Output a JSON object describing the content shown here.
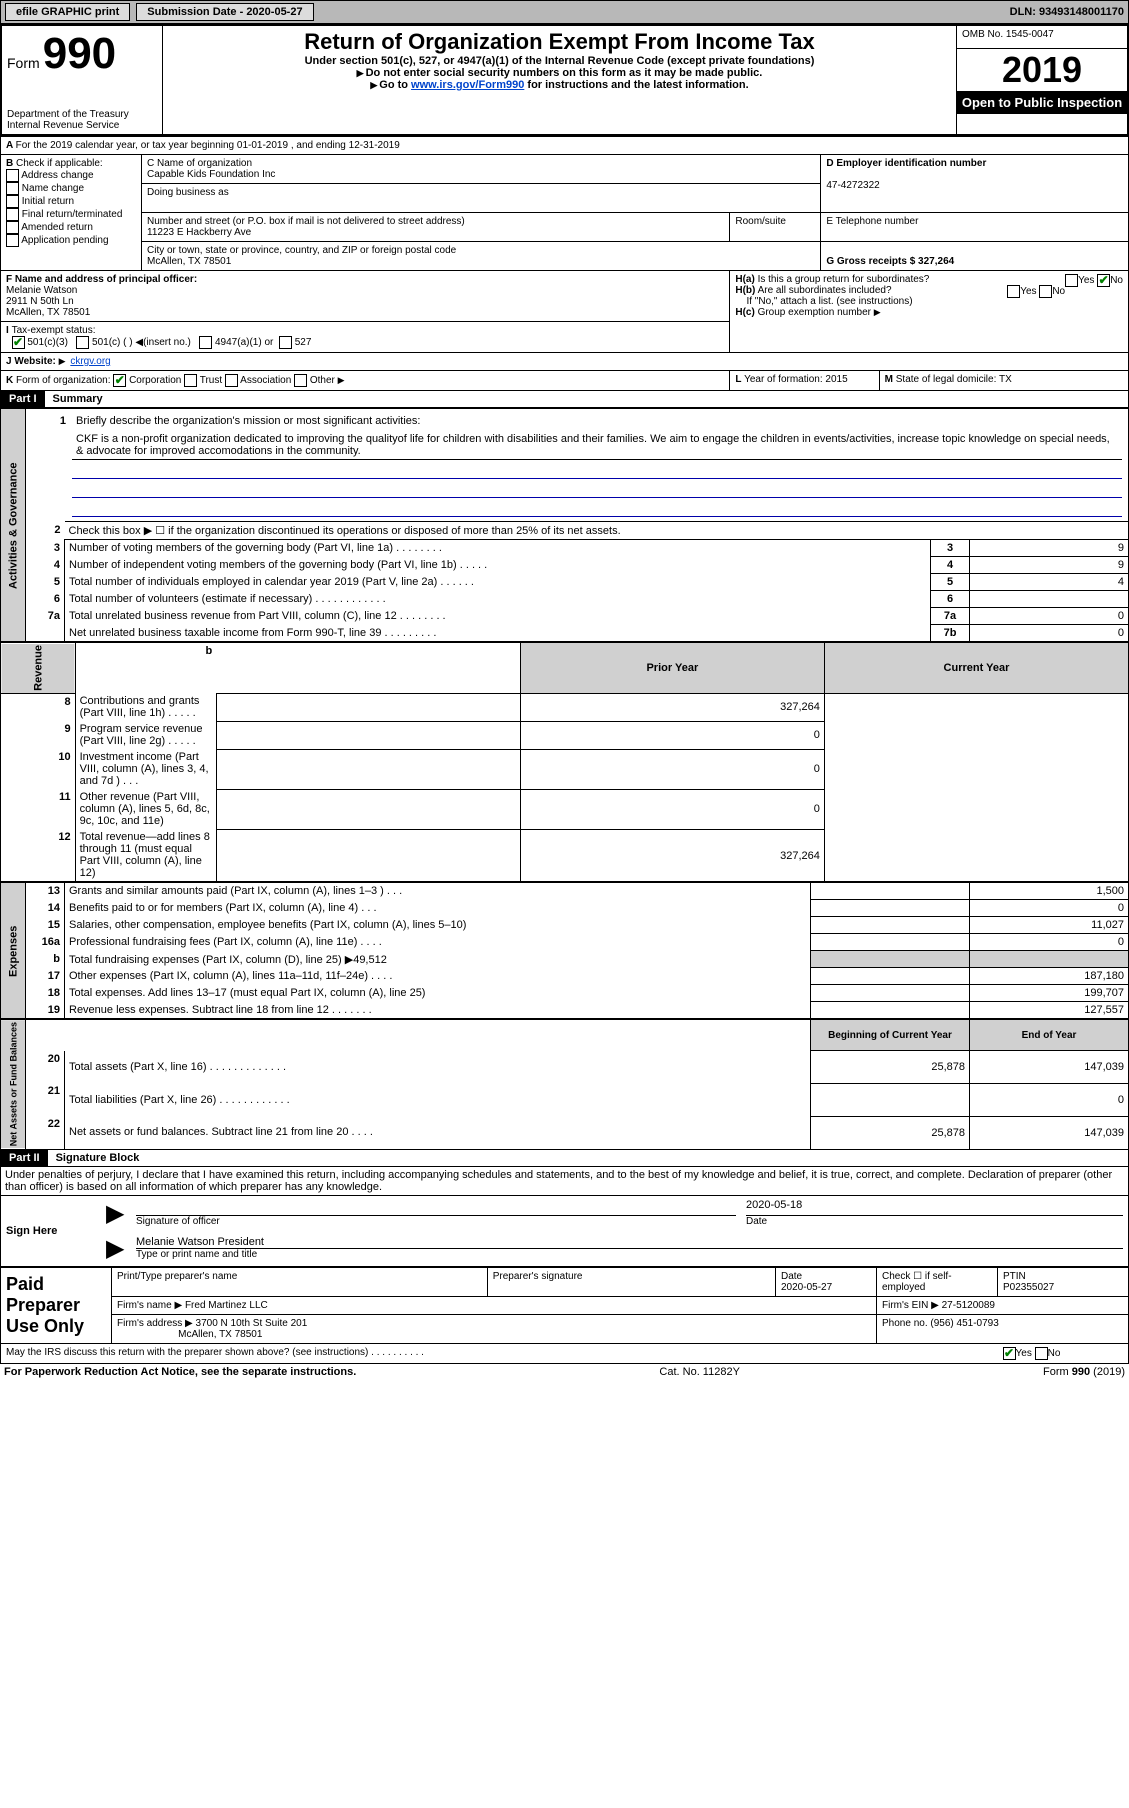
{
  "topbar": {
    "efile_label": "efile GRAPHIC print",
    "submission_date_label": "Submission Date - 2020-05-27",
    "dln_label": "DLN: 93493148001170"
  },
  "header": {
    "form_label": "Form",
    "form_number": "990",
    "dept": "Department of the Treasury\nInternal Revenue Service",
    "title": "Return of Organization Exempt From Income Tax",
    "sub1": "Under section 501(c), 527, or 4947(a)(1) of the Internal Revenue Code (except private foundations)",
    "sub2": "Do not enter social security numbers on this form as it may be made public.",
    "sub3_prefix": "Go to ",
    "sub3_link": "www.irs.gov/Form990",
    "sub3_suffix": " for instructions and the latest information.",
    "omb": "OMB No. 1545-0047",
    "year": "2019",
    "open_public": "Open to Public Inspection"
  },
  "A": {
    "line": "For the 2019 calendar year, or tax year beginning 01-01-2019   , and ending 12-31-2019"
  },
  "B": {
    "title": "Check if applicable:",
    "items": [
      "Address change",
      "Name change",
      "Initial return",
      "Final return/terminated",
      "Amended return",
      "Application pending"
    ]
  },
  "C": {
    "name_label": "C Name of organization",
    "name": "Capable Kids Foundation Inc",
    "dba_label": "Doing business as",
    "addr_label": "Number and street (or P.O. box if mail is not delivered to street address)",
    "room_label": "Room/suite",
    "addr": "11223 E Hackberry Ave",
    "city_label": "City or town, state or province, country, and ZIP or foreign postal code",
    "city": "McAllen, TX  78501"
  },
  "D": {
    "label": "D Employer identification number",
    "val": "47-4272322"
  },
  "E": {
    "label": "E Telephone number"
  },
  "G": {
    "label": "G Gross receipts $ 327,264"
  },
  "F": {
    "label": "F  Name and address of principal officer:",
    "name": "Melanie Watson",
    "addr1": "2911 N 50th Ln",
    "addr2": "McAllen, TX  78501"
  },
  "H": {
    "a_label": "Is this a group return for subordinates?",
    "b_label": "Are all subordinates included?",
    "b_note": "If \"No,\" attach a list. (see instructions)",
    "c_label": "Group exemption number"
  },
  "I": {
    "label": "Tax-exempt status:",
    "opt1": "501(c)(3)",
    "opt2": "501(c) (  )",
    "opt2_note": "(insert no.)",
    "opt3": "4947(a)(1) or",
    "opt4": "527"
  },
  "J": {
    "label": "Website:",
    "val": "ckrgv.org"
  },
  "K": {
    "label": "Form of organization:",
    "opts": [
      "Corporation",
      "Trust",
      "Association",
      "Other"
    ]
  },
  "L": {
    "label": "Year of formation: 2015"
  },
  "M": {
    "label": "State of legal domicile: TX"
  },
  "part1": {
    "header": "Part I",
    "title": "Summary"
  },
  "summary": {
    "q1": "Briefly describe the organization's mission or most significant activities:",
    "q1_text": "CKF is a non-profit organization dedicated to improving the qualityof life for children with disabilities and their families. We aim to engage the children in events/activities, increase topic knowledge on special needs, & advocate for improved accomodations in the community.",
    "q2": "Check this box ▶ ☐ if the organization discontinued its operations or disposed of more than 25% of its net assets.",
    "lines": [
      {
        "n": "3",
        "label": "Number of voting members of the governing body (Part VI, line 1a)  .   .   .   .   .   .   .   .",
        "box": "3",
        "val": "9"
      },
      {
        "n": "4",
        "label": "Number of independent voting members of the governing body (Part VI, line 1b)  .   .   .   .   .",
        "box": "4",
        "val": "9"
      },
      {
        "n": "5",
        "label": "Total number of individuals employed in calendar year 2019 (Part V, line 2a)  .   .   .   .   .   .",
        "box": "5",
        "val": "4"
      },
      {
        "n": "6",
        "label": "Total number of volunteers (estimate if necessary)   .   .   .   .   .   .   .   .   .   .   .   .",
        "box": "6",
        "val": ""
      },
      {
        "n": "7a",
        "label": "Total unrelated business revenue from Part VIII, column (C), line 12  .   .   .   .   .   .   .   .",
        "box": "7a",
        "val": "0"
      },
      {
        "n": "",
        "label": "Net unrelated business taxable income from Form 990-T, line 39   .   .   .   .   .   .   .   .   .",
        "box": "7b",
        "val": "0"
      }
    ]
  },
  "revenue": {
    "tab": "Revenue",
    "prior_label": "Prior Year",
    "current_label": "Current Year",
    "lines": [
      {
        "n": "8",
        "label": "Contributions and grants (Part VIII, line 1h)   .   .   .   .   .",
        "prior": "",
        "cur": "327,264"
      },
      {
        "n": "9",
        "label": "Program service revenue (Part VIII, line 2g)   .   .   .   .   .",
        "prior": "",
        "cur": "0"
      },
      {
        "n": "10",
        "label": "Investment income (Part VIII, column (A), lines 3, 4, and 7d )   .   .   .",
        "prior": "",
        "cur": "0"
      },
      {
        "n": "11",
        "label": "Other revenue (Part VIII, column (A), lines 5, 6d, 8c, 9c, 10c, and 11e)",
        "prior": "",
        "cur": "0"
      },
      {
        "n": "12",
        "label": "Total revenue—add lines 8 through 11 (must equal Part VIII, column (A), line 12)",
        "prior": "",
        "cur": "327,264"
      }
    ]
  },
  "expenses": {
    "tab": "Expenses",
    "lines": [
      {
        "n": "13",
        "label": "Grants and similar amounts paid (Part IX, column (A), lines 1–3 )   .   .   .",
        "prior": "",
        "cur": "1,500"
      },
      {
        "n": "14",
        "label": "Benefits paid to or for members (Part IX, column (A), line 4)   .   .   .",
        "prior": "",
        "cur": "0"
      },
      {
        "n": "15",
        "label": "Salaries, other compensation, employee benefits (Part IX, column (A), lines 5–10)",
        "prior": "",
        "cur": "11,027"
      },
      {
        "n": "16a",
        "label": "Professional fundraising fees (Part IX, column (A), line 11e)   .   .   .   .",
        "prior": "",
        "cur": "0"
      },
      {
        "n": "b",
        "label": "Total fundraising expenses (Part IX, column (D), line 25) ▶49,512",
        "prior": "grey",
        "cur": "grey"
      },
      {
        "n": "17",
        "label": "Other expenses (Part IX, column (A), lines 11a–11d, 11f–24e)   .   .   .   .",
        "prior": "",
        "cur": "187,180"
      },
      {
        "n": "18",
        "label": "Total expenses. Add lines 13–17 (must equal Part IX, column (A), line 25)",
        "prior": "",
        "cur": "199,707"
      },
      {
        "n": "19",
        "label": "Revenue less expenses. Subtract line 18 from line 12  .   .   .   .   .   .   .",
        "prior": "",
        "cur": "127,557"
      }
    ]
  },
  "netassets": {
    "tab": "Net Assets or Fund Balances",
    "begin_label": "Beginning of Current Year",
    "end_label": "End of Year",
    "lines": [
      {
        "n": "20",
        "label": "Total assets (Part X, line 16)  .   .   .   .   .   .   .   .   .   .   .   .   .",
        "prior": "25,878",
        "cur": "147,039"
      },
      {
        "n": "21",
        "label": "Total liabilities (Part X, line 26)  .   .   .   .   .   .   .   .   .   .   .   .",
        "prior": "",
        "cur": "0"
      },
      {
        "n": "22",
        "label": "Net assets or fund balances. Subtract line 21 from line 20   .   .   .   .",
        "prior": "25,878",
        "cur": "147,039"
      }
    ]
  },
  "part2": {
    "header": "Part II",
    "title": "Signature Block",
    "declaration": "Under penalties of perjury, I declare that I have examined this return, including accompanying schedules and statements, and to the best of my knowledge and belief, it is true, correct, and complete. Declaration of preparer (other than officer) is based on all information of which preparer has any knowledge."
  },
  "sign": {
    "here": "Sign Here",
    "sig_label": "Signature of officer",
    "date_label": "Date",
    "date": "2020-05-18",
    "name": "Melanie Watson President",
    "name_label": "Type or print name and title"
  },
  "paid": {
    "title": "Paid Preparer Use Only",
    "print_label": "Print/Type preparer's name",
    "sig_label": "Preparer's signature",
    "date_label": "Date",
    "date": "2020-05-27",
    "check_label": "Check ☐ if self-employed",
    "ptin_label": "PTIN",
    "ptin": "P02355027",
    "firm_name_label": "Firm's name    ▶",
    "firm_name": "Fred Martinez LLC",
    "firm_ein_label": "Firm's EIN ▶",
    "firm_ein": "27-5120089",
    "firm_addr_label": "Firm's address ▶",
    "firm_addr1": "3700 N 10th St Suite 201",
    "firm_addr2": "McAllen, TX  78501",
    "phone_label": "Phone no.",
    "phone": "(956) 451-0793",
    "discuss": "May the IRS discuss this return with the preparer shown above? (see instructions)   .   .   .   .   .   .   .   .   .   ."
  },
  "footer": {
    "left": "For Paperwork Reduction Act Notice, see the separate instructions.",
    "mid": "Cat. No. 11282Y",
    "right": "Form 990 (2019)"
  }
}
